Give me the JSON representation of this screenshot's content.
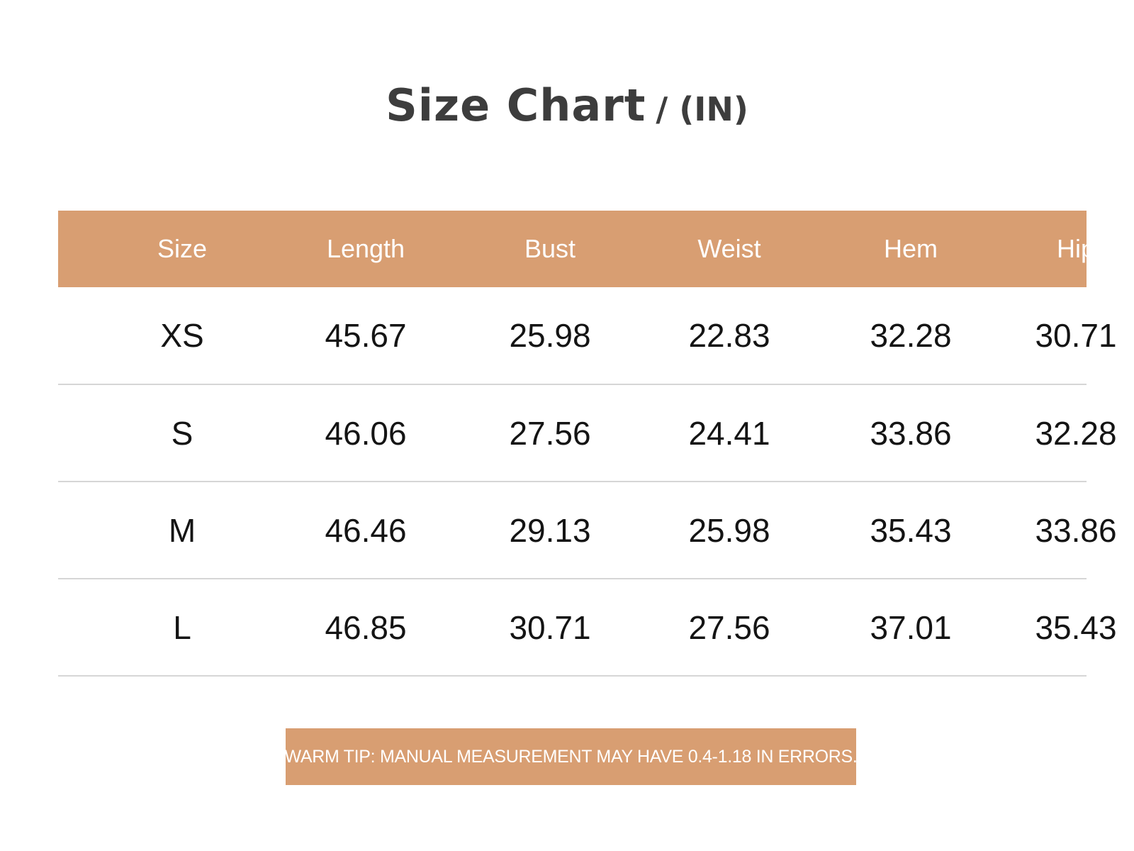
{
  "title": {
    "main": "Size Chart",
    "unit": "/ (IN)"
  },
  "table": {
    "columns": [
      "Size",
      "Length",
      "Bust",
      "Weist",
      "Hem",
      "Hip"
    ],
    "rows": [
      [
        "XS",
        "45.67",
        "25.98",
        "22.83",
        "32.28",
        "30.71"
      ],
      [
        "S",
        "46.06",
        "27.56",
        "24.41",
        "33.86",
        "32.28"
      ],
      [
        "M",
        "46.46",
        "29.13",
        "25.98",
        "35.43",
        "33.86"
      ],
      [
        "L",
        "46.85",
        "30.71",
        "27.56",
        "37.01",
        "35.43"
      ]
    ]
  },
  "tip": {
    "text": "WARM TIP: MANUAL MEASUREMENT MAY HAVE 0.4-1.18 IN ERRORS."
  },
  "colors": {
    "accent": "#d89e72",
    "title_text": "#3d3d3d",
    "divider": "#d6d6d6"
  }
}
